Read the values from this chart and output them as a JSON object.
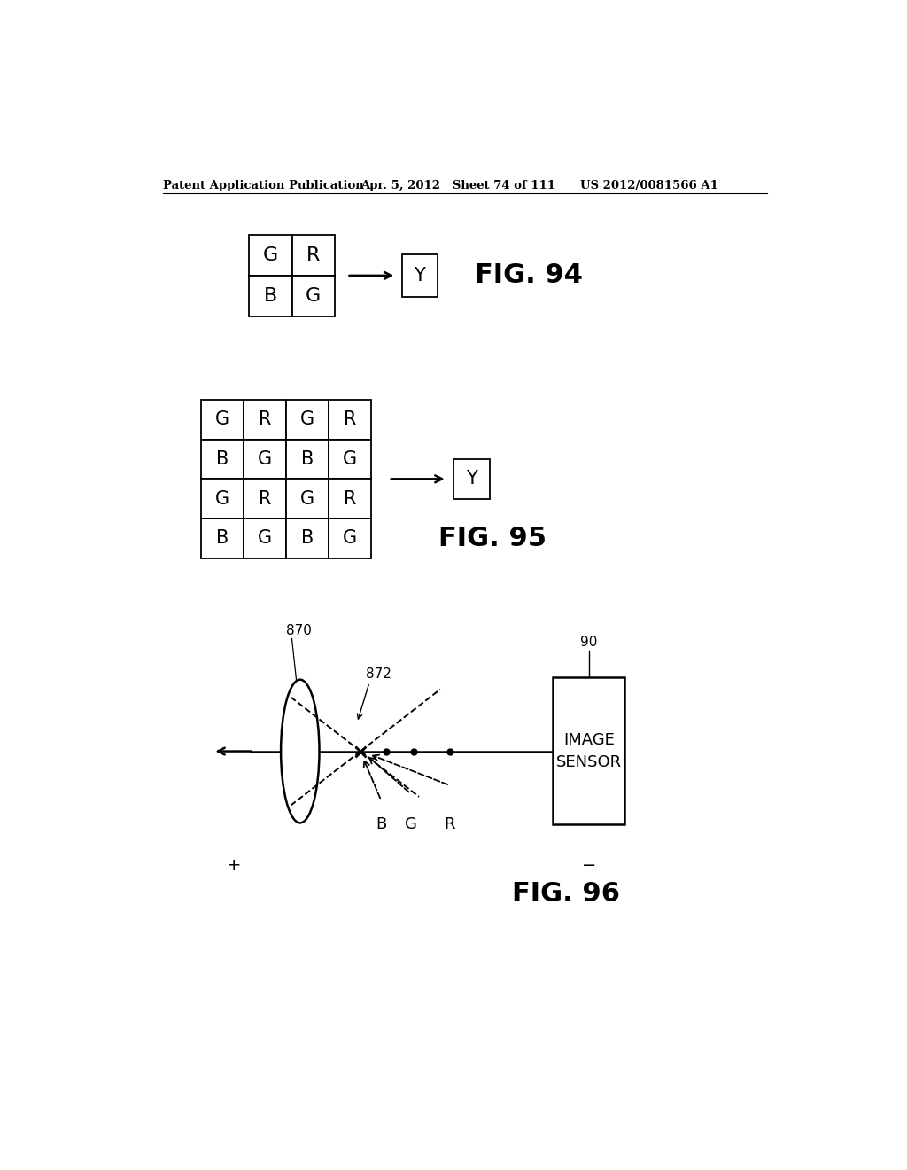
{
  "header_left": "Patent Application Publication",
  "header_mid": "Apr. 5, 2012   Sheet 74 of 111",
  "header_right": "US 2012/0081566 A1",
  "fig94": {
    "label": "FIG. 94",
    "grid2x2": [
      [
        "G",
        "R"
      ],
      [
        "B",
        "G"
      ]
    ],
    "output": "Y"
  },
  "fig95": {
    "label": "FIG. 95",
    "grid4x4": [
      [
        "G",
        "R",
        "G",
        "R"
      ],
      [
        "B",
        "G",
        "B",
        "G"
      ],
      [
        "G",
        "R",
        "G",
        "R"
      ],
      [
        "B",
        "G",
        "B",
        "G"
      ]
    ],
    "output": "Y"
  },
  "fig96": {
    "label": "FIG. 96",
    "lens_label": "870",
    "focal_label": "872",
    "sensor_label": "90",
    "sensor_text": "IMAGE\nSENSOR",
    "plus_label": "+",
    "minus_label": "-",
    "bgr_labels": [
      "B",
      "G",
      "R"
    ]
  },
  "bg_color": "#ffffff",
  "line_color": "#000000"
}
